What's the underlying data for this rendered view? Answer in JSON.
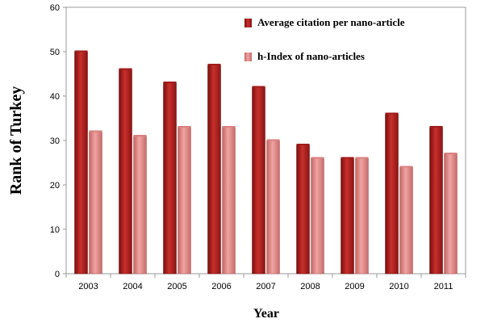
{
  "chart_data": {
    "type": "bar",
    "title": "",
    "xlabel": "Year",
    "ylabel": "Rank of Turkey",
    "ylim": [
      0,
      60
    ],
    "yticks": [
      0,
      10,
      20,
      30,
      40,
      50,
      60
    ],
    "grid": false,
    "legend_position": "top-right",
    "categories": [
      "2003",
      "2004",
      "2005",
      "2006",
      "2007",
      "2008",
      "2009",
      "2010",
      "2011"
    ],
    "series": [
      {
        "name": "Average citation per nano-article",
        "color": "#b22222",
        "values": [
          50,
          46,
          43,
          47,
          42,
          29,
          26,
          36,
          33
        ]
      },
      {
        "name": "h-Index of nano-articles",
        "color": "#e58c8a",
        "values": [
          32,
          31,
          33,
          33,
          30,
          26,
          26,
          24,
          27
        ]
      }
    ]
  }
}
